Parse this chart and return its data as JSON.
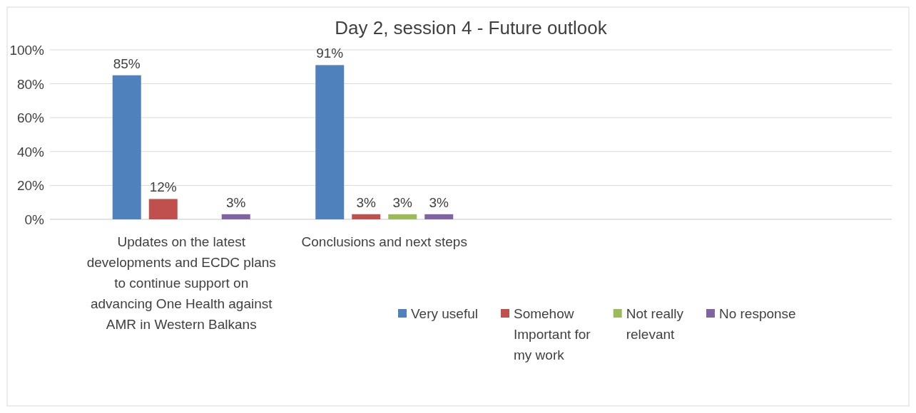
{
  "chart_data": {
    "type": "bar",
    "title": "Day 2, session 4 - Future outlook",
    "categories": [
      "Updates on the latest developments and ECDC plans to continue support on advancing One Health against AMR in Western Balkans",
      "Conclusions and next steps",
      null,
      null
    ],
    "series": [
      {
        "name": "Very useful",
        "color": "#4f81bd",
        "values": [
          85,
          91,
          null,
          null
        ],
        "value_labels": [
          "85%",
          "91%",
          null,
          null
        ]
      },
      {
        "name": "Somehow Important for my work",
        "color": "#c0504d",
        "values": [
          12,
          3,
          null,
          null
        ],
        "value_labels": [
          "12%",
          "3%",
          null,
          null
        ]
      },
      {
        "name": "Not really relevant",
        "color": "#9bbb59",
        "values": [
          null,
          3,
          null,
          null
        ],
        "value_labels": [
          null,
          "3%",
          null,
          null
        ]
      },
      {
        "name": "No response",
        "color": "#8064a2",
        "values": [
          3,
          3,
          null,
          null
        ],
        "value_labels": [
          "3%",
          "3%",
          null,
          null
        ]
      }
    ],
    "ylim": [
      0,
      100
    ],
    "yticks": [
      {
        "value": 0,
        "label": "0%"
      },
      {
        "value": 20,
        "label": "20%"
      },
      {
        "value": 40,
        "label": "40%"
      },
      {
        "value": 60,
        "label": "60%"
      },
      {
        "value": 80,
        "label": "80%"
      },
      {
        "value": 100,
        "label": "100%"
      }
    ],
    "grid": "y",
    "legend": "bottom"
  }
}
